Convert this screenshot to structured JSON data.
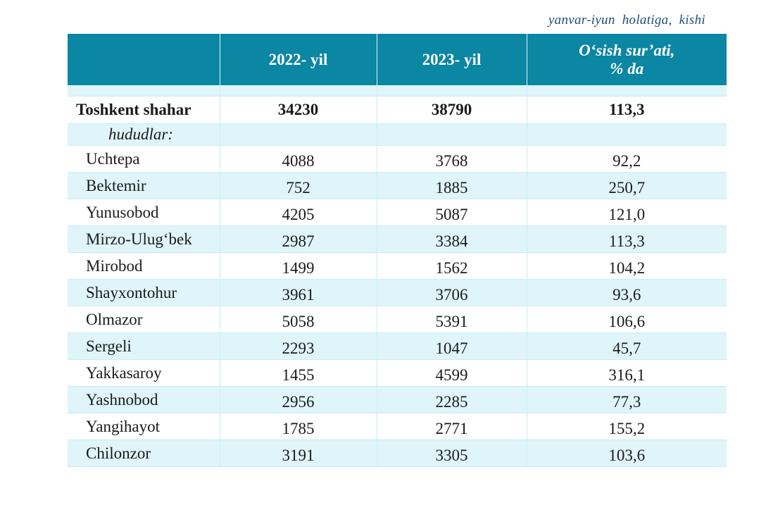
{
  "unit_note": "yanvar-iyun  holatiga,  kishi",
  "table": {
    "headers": [
      "",
      "2022- yil",
      "2023- yil",
      "O‘sish sur’ati,",
      "% da"
    ],
    "total": {
      "name": "Toshkent shahar",
      "y2022": "34230",
      "y2023": "38790",
      "growth": "113,3"
    },
    "subheading": "hududlar:",
    "rows": [
      {
        "name": "Uchtepa",
        "y2022": "4088",
        "y2023": "3768",
        "growth": "92,2"
      },
      {
        "name": "Bektemir",
        "y2022": "752",
        "y2023": "1885",
        "growth": "250,7"
      },
      {
        "name": "Yunusobod",
        "y2022": "4205",
        "y2023": "5087",
        "growth": "121,0"
      },
      {
        "name": "Mirzo-Ulug‘bek",
        "y2022": "2987",
        "y2023": "3384",
        "growth": "113,3"
      },
      {
        "name": "Mirobod",
        "y2022": "1499",
        "y2023": "1562",
        "growth": "104,2"
      },
      {
        "name": "Shayxontohur",
        "y2022": "3961",
        "y2023": "3706",
        "growth": "93,6"
      },
      {
        "name": "Olmazor",
        "y2022": "5058",
        "y2023": "5391",
        "growth": "106,6"
      },
      {
        "name": "Sergeli",
        "y2022": "2293",
        "y2023": "1047",
        "growth": "45,7"
      },
      {
        "name": "Yakkasaroy",
        "y2022": "1455",
        "y2023": "4599",
        "growth": "316,1"
      },
      {
        "name": "Yashnobod",
        "y2022": "2956",
        "y2023": "2285",
        "growth": "77,3"
      },
      {
        "name": "Yangihayot",
        "y2022": "1785",
        "y2023": "2771",
        "growth": "155,2"
      },
      {
        "name": "Chilonzor",
        "y2022": "3191",
        "y2023": "3305",
        "growth": "103,6"
      }
    ]
  },
  "colors": {
    "header_bg": "#0b86a3",
    "stripe_bg": "#dff5fa",
    "note_text": "#1f4e79"
  }
}
